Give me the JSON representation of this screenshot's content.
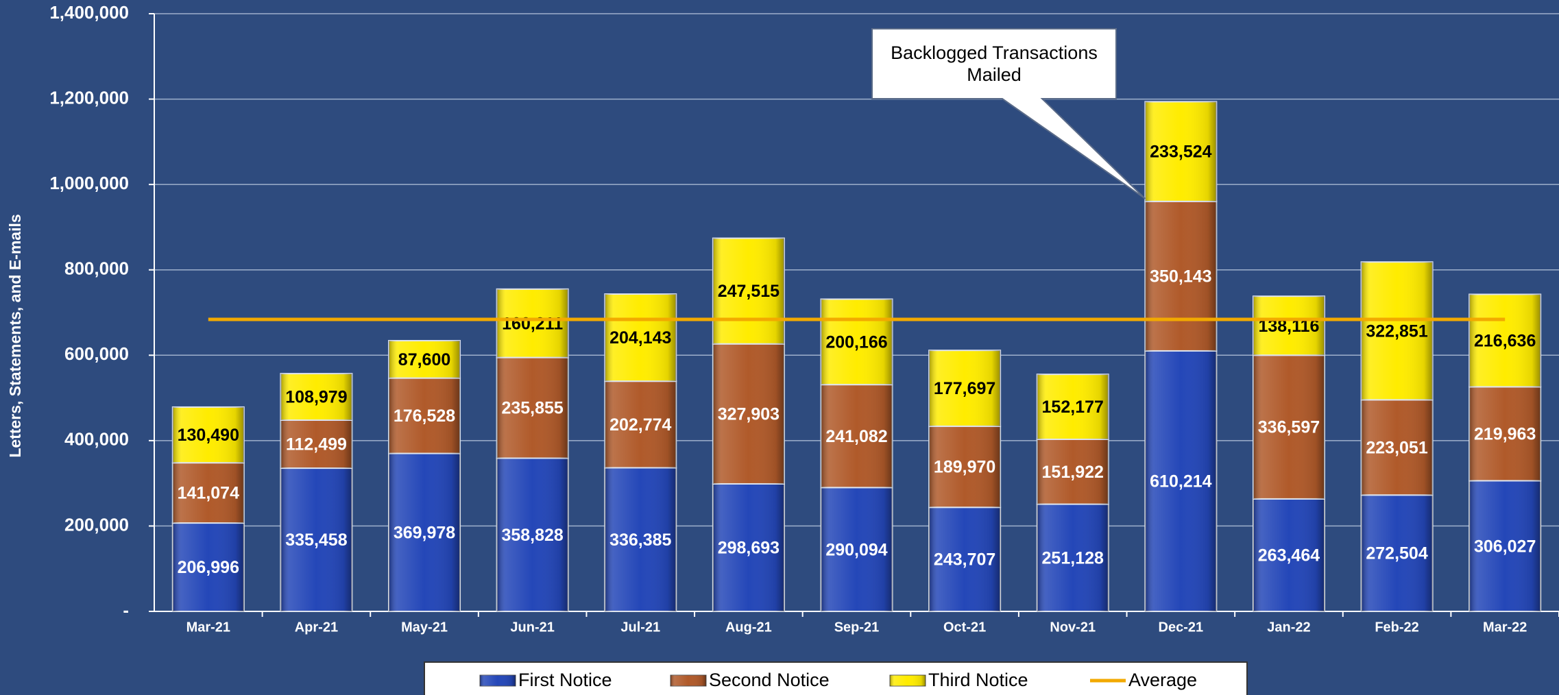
{
  "chart_data": {
    "type": "stacked_bar",
    "y_axis_label": "Letters, Statements, and E-mails",
    "annotation": "Backlogged Transactions Mailed",
    "annotation_target": "Dec-21",
    "categories": [
      "Mar-21",
      "Apr-21",
      "May-21",
      "Jun-21",
      "Jul-21",
      "Aug-21",
      "Sep-21",
      "Oct-21",
      "Nov-21",
      "Dec-21",
      "Jan-22",
      "Feb-22",
      "Mar-22"
    ],
    "series": [
      {
        "name": "First Notice",
        "color": "#2447b8",
        "label_color": "#ffffff",
        "values": [
          206996,
          335458,
          369978,
          358828,
          336385,
          298693,
          290094,
          243707,
          251128,
          610214,
          263464,
          272504,
          306027
        ],
        "value_labels": [
          "206,996",
          "335,458",
          "369,978",
          "358,828",
          "336,385",
          "298,693",
          "290,094",
          "243,707",
          "251,128",
          "610,214",
          "263,464",
          "272,504",
          "306,027"
        ]
      },
      {
        "name": "Second Notice",
        "color": "#b05a2a",
        "label_color": "#ffffff",
        "values": [
          141074,
          112499,
          176528,
          235855,
          202774,
          327903,
          241082,
          189970,
          151922,
          350143,
          336597,
          223051,
          219963
        ],
        "value_labels": [
          "141,074",
          "112,499",
          "176,528",
          "235,855",
          "202,774",
          "327,903",
          "241,082",
          "189,970",
          "151,922",
          "350,143",
          "336,597",
          "223,051",
          "219,963"
        ]
      },
      {
        "name": "Third Notice",
        "color": "#ffec00",
        "label_color": "#000000",
        "values": [
          130490,
          108979,
          87600,
          160211,
          204143,
          247515,
          200166,
          177697,
          152177,
          233524,
          138116,
          322851,
          216636
        ],
        "value_labels": [
          "130,490",
          "108,979",
          "87,600",
          "160,211",
          "204,143",
          "247,515",
          "200,166",
          "177,697",
          "152,177",
          "233,524",
          "138,116",
          "322,851",
          "216,636"
        ]
      },
      {
        "name": "Average",
        "type": "line",
        "color": "#f2a900",
        "values": [
          684000,
          684000,
          684000,
          684000,
          684000,
          684000,
          684000,
          684000,
          684000,
          684000,
          684000,
          684000,
          684000
        ]
      }
    ],
    "ylim": [
      0,
      1400000
    ],
    "yticks": [
      {
        "value": 0,
        "label": "-"
      },
      {
        "value": 200000,
        "label": "200,000"
      },
      {
        "value": 400000,
        "label": "400,000"
      },
      {
        "value": 600000,
        "label": "600,000"
      },
      {
        "value": 800000,
        "label": "800,000"
      },
      {
        "value": 1000000,
        "label": "1,000,000"
      },
      {
        "value": 1200000,
        "label": "1,200,000"
      },
      {
        "value": 1400000,
        "label": "1,400,000"
      }
    ],
    "grid": true,
    "legend": "bottom",
    "background": "#2e4b7e"
  }
}
